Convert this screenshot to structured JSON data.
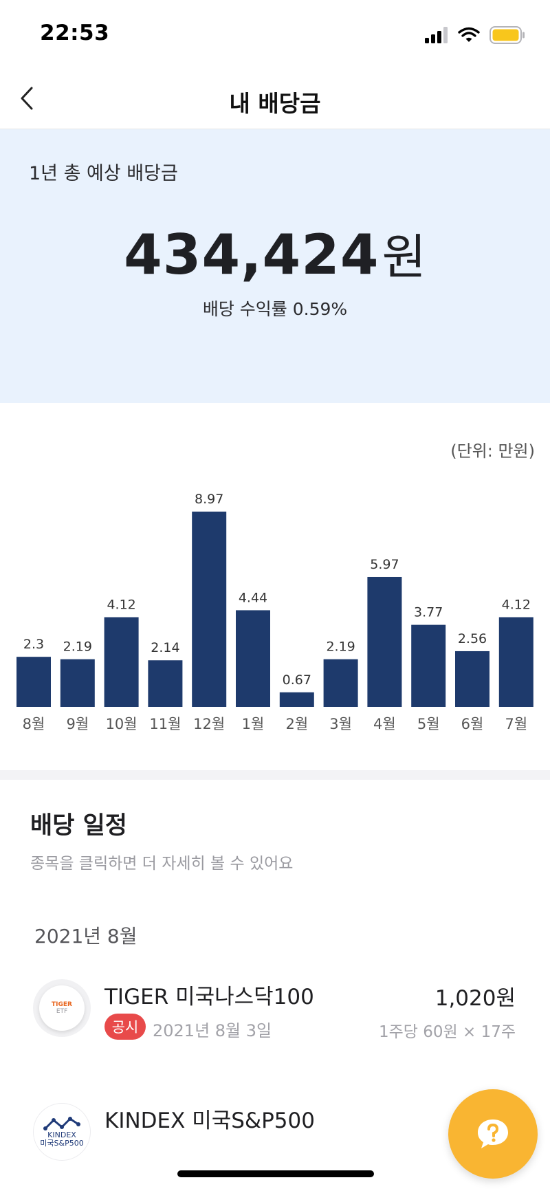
{
  "status_bar": {
    "time": "22:53"
  },
  "nav": {
    "title": "내 배당금"
  },
  "summary": {
    "label": "1년 총 예상 배당금",
    "amount": "434,424",
    "amount_unit": "원",
    "yield_text": "배당 수익률 0.59%"
  },
  "chart_data": {
    "type": "bar",
    "unit_label": "(단위: 만원)",
    "categories": [
      "8월",
      "9월",
      "10월",
      "11월",
      "12월",
      "1월",
      "2월",
      "3월",
      "4월",
      "5월",
      "6월",
      "7월"
    ],
    "values": [
      2.3,
      2.19,
      4.12,
      2.14,
      8.97,
      4.44,
      0.67,
      2.19,
      5.97,
      3.77,
      2.56,
      4.12
    ],
    "value_labels": [
      "2.3",
      "2.19",
      "4.12",
      "2.14",
      "8.97",
      "4.44",
      "0.67",
      "2.19",
      "5.97",
      "3.77",
      "2.56",
      "4.12"
    ],
    "bar_color": "#1e3a6c"
  },
  "schedule": {
    "title": "배당 일정",
    "subtitle": "종목을 클릭하면 더 자세히 볼 수 있어요",
    "month": "2021년 8월",
    "items": [
      {
        "logo_text_top": "TIGER",
        "logo_text_bottom": "ETF",
        "name": "TIGER 미국나스닥100",
        "badge": "공시",
        "date": "2021년 8월 3일",
        "amount": "1,020원",
        "detail": "1주당 60원 × 17주"
      },
      {
        "logo_text_top": "KINDEX",
        "logo_text_bottom": "미국S&P500",
        "name": "KINDEX 미국S&P500"
      }
    ]
  },
  "colors": {
    "summary_bg": "#e9f2fd",
    "bar": "#1e3a6c",
    "badge": "#e84a4a",
    "fab": "#f9b532",
    "battery": "#f8c61c"
  },
  "icons": {
    "back": "chevron-left-icon",
    "signal": "cellular-signal-icon",
    "wifi": "wifi-icon",
    "battery": "battery-icon",
    "help": "help-chat-icon"
  }
}
